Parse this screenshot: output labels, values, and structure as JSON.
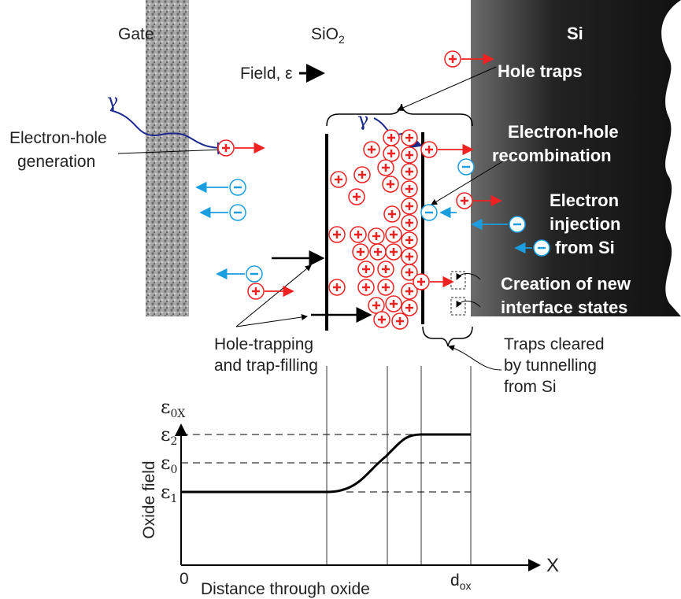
{
  "gate": "Gate",
  "oxide": {
    "text": "SiO",
    "sub": "2"
  },
  "silicon": "Si",
  "field": "Field, ε",
  "generation": {
    "gamma": "γ",
    "lines": [
      "Electron-hole",
      "generation"
    ]
  },
  "trap_gamma": "γ",
  "processes": [
    {
      "lines": [
        "Hole traps"
      ]
    },
    {
      "lines": [
        "Electron-hole",
        "recombination"
      ]
    },
    {
      "lines": [
        "Electron",
        "injection",
        "from Si"
      ]
    },
    {
      "lines": [
        "Creation of new",
        "interface states"
      ]
    }
  ],
  "hole_trapping": [
    "Hole-trapping",
    "and trap-filling"
  ],
  "traps_cleared": [
    "Traps cleared",
    "by tunnelling",
    "from Si"
  ],
  "plot": {
    "y_symbol": {
      "text": "ε",
      "sub": "0X"
    },
    "levels": [
      {
        "text": "ε",
        "sub": "2"
      },
      {
        "text": "ε",
        "sub": "0"
      },
      {
        "text": "ε",
        "sub": "1"
      }
    ],
    "y_axis_label": "Oxide field",
    "x_axis_symbol": "X",
    "origin": "0",
    "x_axis_label": "Distance through oxide",
    "end": {
      "text": "d",
      "sub": "ox"
    }
  }
}
